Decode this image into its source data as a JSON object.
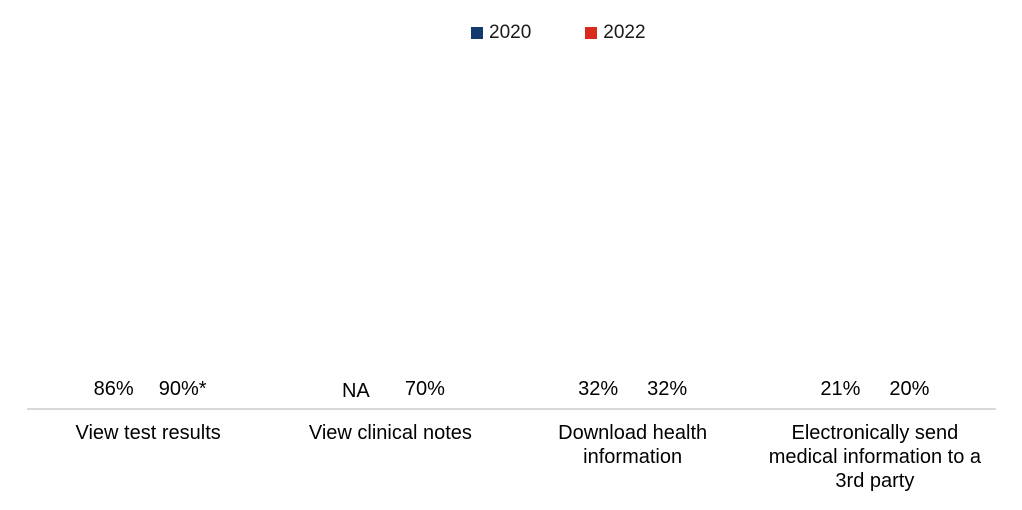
{
  "chart_data": {
    "type": "bar",
    "categories": [
      "View test results",
      "View clinical notes",
      "Download health information",
      "Electronically send medical information to a 3rd party"
    ],
    "series": [
      {
        "name": "2020",
        "color": "#123A6D",
        "values": [
          86,
          null,
          32,
          21
        ],
        "labels": [
          "86%",
          "NA",
          "32%",
          "21%"
        ]
      },
      {
        "name": "2022",
        "color": "#DA2A1E",
        "values": [
          90,
          70,
          32,
          20
        ],
        "labels": [
          "90%*",
          "70%",
          "32%",
          "20%"
        ]
      }
    ],
    "ylim": [
      0,
      100
    ],
    "grid": false,
    "y_axis_visible": false,
    "legend_position": "top",
    "axis_line_color": "#D9D9D9",
    "na_label": "NA"
  }
}
